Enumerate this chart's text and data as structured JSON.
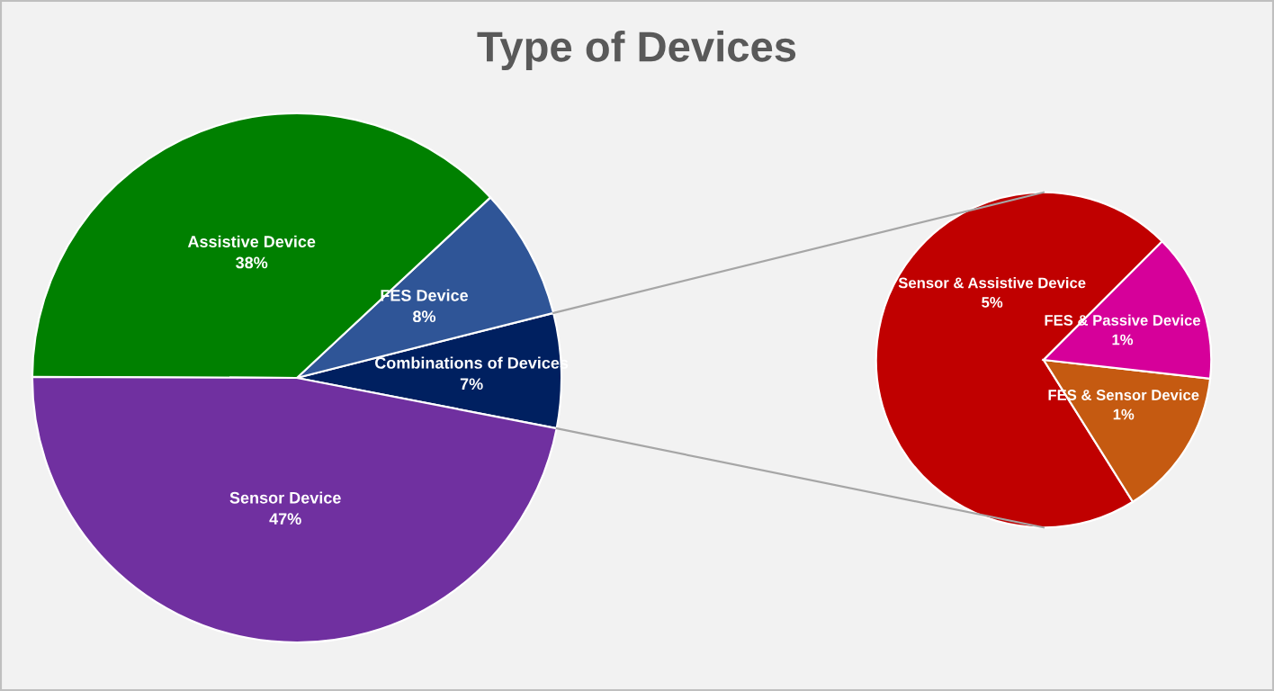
{
  "chart_data": [
    {
      "type": "pie",
      "title": "Type of Devices",
      "categories": [
        "Combinations of Devices",
        "FES Device",
        "Assistive Device",
        "Sensor Device"
      ],
      "values": [
        7,
        8,
        38,
        47
      ],
      "value_labels": [
        "7%",
        "8%",
        "38%",
        "47%"
      ],
      "colors": [
        "#002060",
        "#2f5597",
        "#008000",
        "#7030a0"
      ]
    },
    {
      "type": "pie",
      "categories": [
        "Sensor & Assistive Device",
        "FES & Sensor Device",
        "FES & Passive Device"
      ],
      "values": [
        5,
        1,
        1
      ],
      "value_labels": [
        "5%",
        "1%",
        "1%"
      ],
      "colors": [
        "#c00000",
        "#c55a11",
        "#d6009a"
      ]
    }
  ]
}
